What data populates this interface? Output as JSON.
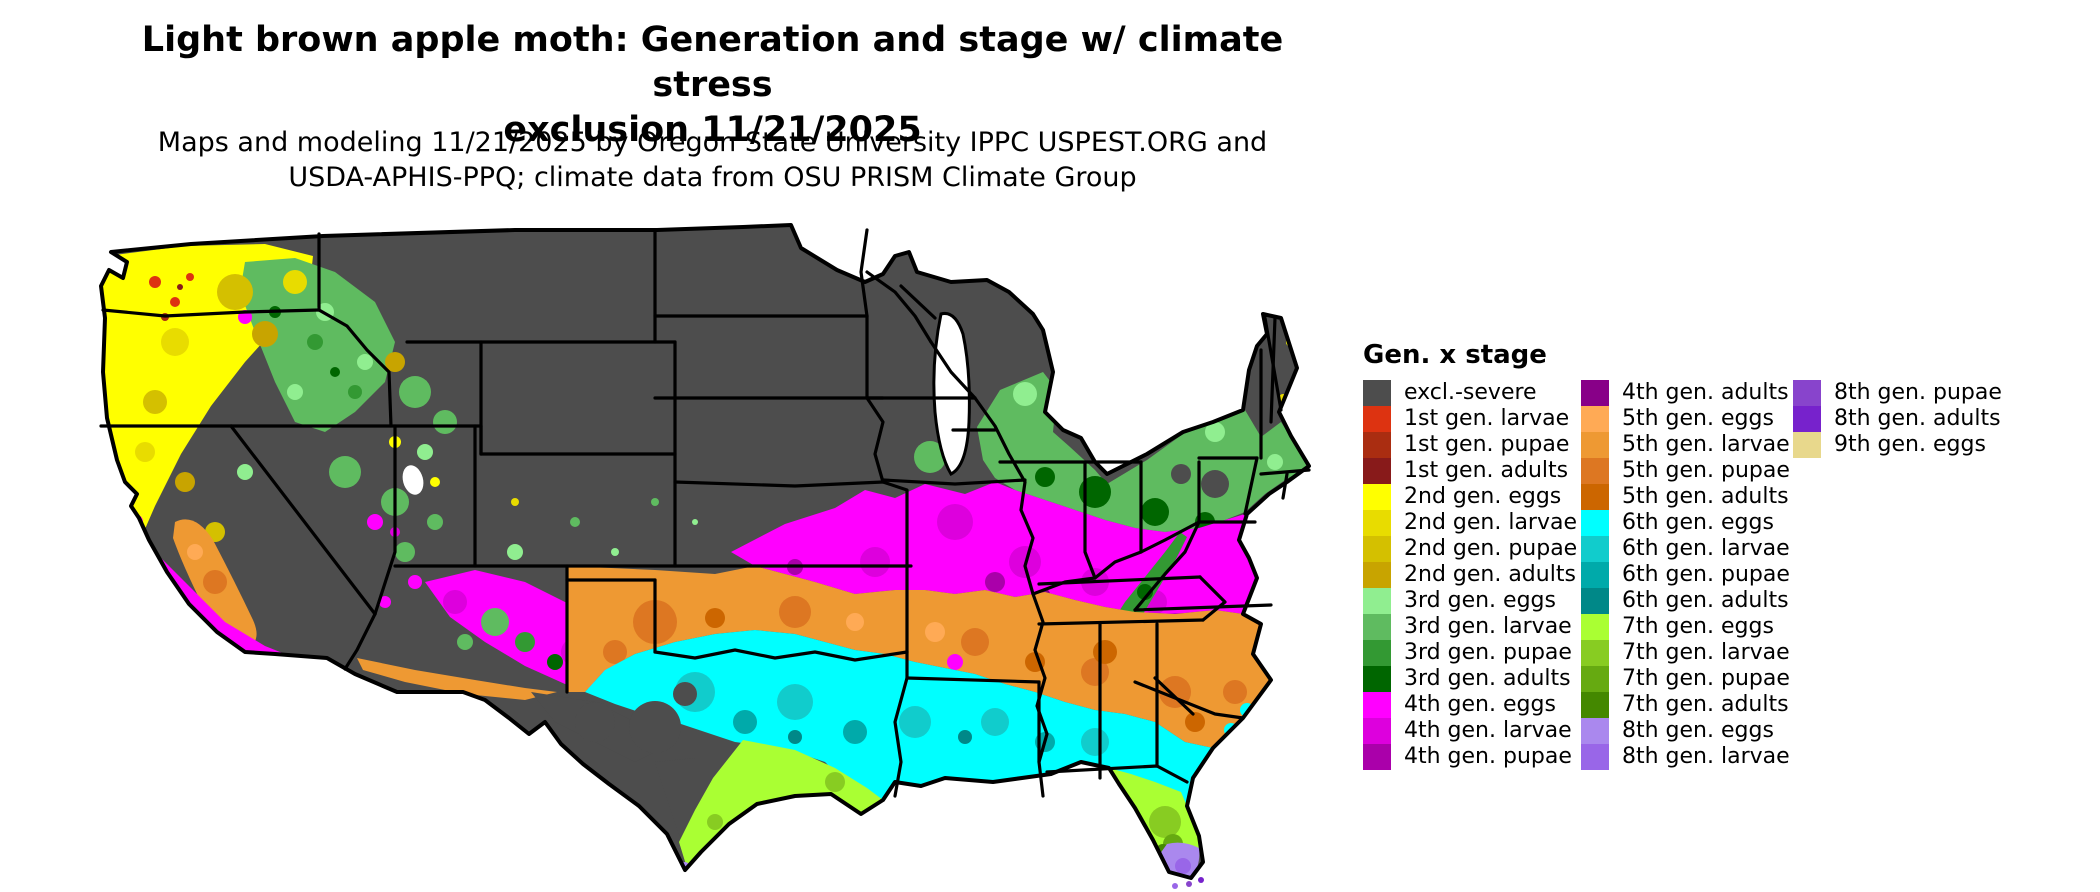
{
  "title": {
    "line1": "Light brown apple moth: Generation and stage w/ climate stress",
    "line2": "exclusion 11/21/2025"
  },
  "subtitle": {
    "line1": "Maps and modeling 11/21/2025 by Oregon State University IPPC USPEST.ORG and",
    "line2": "USDA-APHIS-PPQ; climate data from OSU PRISM Climate Group"
  },
  "legend": {
    "heading": "Gen. x stage",
    "columns": [
      [
        {
          "key": "excl",
          "label": "excl.-severe"
        },
        {
          "key": "g1_larvae",
          "label": "1st gen. larvae"
        },
        {
          "key": "g1_pupae",
          "label": "1st gen. pupae"
        },
        {
          "key": "g1_adults",
          "label": "1st gen. adults"
        },
        {
          "key": "g2_eggs",
          "label": "2nd gen. eggs"
        },
        {
          "key": "g2_larvae",
          "label": "2nd gen. larvae"
        },
        {
          "key": "g2_pupae",
          "label": "2nd gen. pupae"
        },
        {
          "key": "g2_adults",
          "label": "2nd gen. adults"
        },
        {
          "key": "g3_eggs",
          "label": "3rd gen. eggs"
        },
        {
          "key": "g3_larvae",
          "label": "3rd gen. larvae"
        },
        {
          "key": "g3_pupae",
          "label": "3rd gen. pupae"
        },
        {
          "key": "g3_adults",
          "label": "3rd gen. adults"
        },
        {
          "key": "g4_eggs",
          "label": "4th gen. eggs"
        },
        {
          "key": "g4_larvae",
          "label": "4th gen. larvae"
        },
        {
          "key": "g4_pupae",
          "label": "4th gen. pupae"
        }
      ],
      [
        {
          "key": "g4_adults",
          "label": "4th gen. adults"
        },
        {
          "key": "g5_eggs",
          "label": "5th gen. eggs"
        },
        {
          "key": "g5_larvae",
          "label": "5th gen. larvae"
        },
        {
          "key": "g5_pupae",
          "label": "5th gen. pupae"
        },
        {
          "key": "g5_adults",
          "label": "5th gen. adults"
        },
        {
          "key": "g6_eggs",
          "label": "6th gen. eggs"
        },
        {
          "key": "g6_larvae",
          "label": "6th gen. larvae"
        },
        {
          "key": "g6_pupae",
          "label": "6th gen. pupae"
        },
        {
          "key": "g6_adults",
          "label": "6th gen. adults"
        },
        {
          "key": "g7_eggs",
          "label": "7th gen. eggs"
        },
        {
          "key": "g7_larvae",
          "label": "7th gen. larvae"
        },
        {
          "key": "g7_pupae",
          "label": "7th gen. pupae"
        },
        {
          "key": "g7_adults",
          "label": "7th gen. adults"
        },
        {
          "key": "g8_eggs",
          "label": "8th gen. eggs"
        },
        {
          "key": "g8_larvae",
          "label": "8th gen. larvae"
        }
      ],
      [
        {
          "key": "g8_pupae",
          "label": "8th gen. pupae"
        },
        {
          "key": "g8_adults",
          "label": "8th gen. adults"
        },
        {
          "key": "g9_eggs",
          "label": "9th gen. eggs"
        }
      ]
    ]
  },
  "palette": {
    "excl": "#4d4d4d",
    "g1_larvae": "#dd3311",
    "g1_pupae": "#aa2d11",
    "g1_adults": "#881a1a",
    "g2_eggs": "#ffff00",
    "g2_larvae": "#e8dc00",
    "g2_pupae": "#d4c000",
    "g2_adults": "#c8a400",
    "g3_eggs": "#90ee90",
    "g3_larvae": "#5fbb60",
    "g3_pupae": "#339933",
    "g3_adults": "#006600",
    "g4_eggs": "#ff00ff",
    "g4_larvae": "#dd00dd",
    "g4_pupae": "#aa00aa",
    "g4_adults": "#880088",
    "g5_eggs": "#ffaa55",
    "g5_larvae": "#ee9933",
    "g5_pupae": "#dd7722",
    "g5_adults": "#cc6600",
    "g6_eggs": "#00ffff",
    "g6_larvae": "#11cccc",
    "g6_pupae": "#00aaaa",
    "g6_adults": "#008888",
    "g7_eggs": "#aaff33",
    "g7_larvae": "#88cc22",
    "g7_pupae": "#66aa11",
    "g7_adults": "#448800",
    "g8_eggs": "#aa88ee",
    "g8_larvae": "#9966e8",
    "g8_pupae": "#8844cc",
    "g8_adults": "#7722cc",
    "g9_eggs": "#e8d88c"
  },
  "map": {
    "region": "Contiguous United States",
    "bands_north_to_south": [
      {
        "area": "Northern Rockies, Plains, Upper Midwest, N. New England, high deserts, Sierra, S./W. Texas interior",
        "stage": "excl.-severe"
      },
      {
        "area": "Pacific Northwest coast and valleys (WA, W. OR, N. CA)",
        "stage": "2nd gen. eggs-adults with 3rd gen. mottling, small 1st gen. pockets near Puget Sound"
      },
      {
        "area": "Lower Michigan, N. Ohio, Pennsylvania, upstate NY, S. New England, Appalachian ridge",
        "stage": "3rd gen. eggs-adults"
      },
      {
        "area": "E. Kansas, Missouri, Illinois, Indiana, S. Ohio, Kentucky, WV, Virginia, Mid-Atlantic; AZ/NM highlands; S. California coast",
        "stage": "4th gen. eggs-pupae"
      },
      {
        "area": "Texas panhandle, Oklahoma, Arkansas, Tennessee, N. MS/AL/GA, Carolinas; California Central Valley",
        "stage": "5th gen. eggs-adults"
      },
      {
        "area": "Central Texas, Louisiana, S. MS/AL/GA, N. Florida, SE coastal fringe",
        "stage": "6th gen. eggs-adults"
      },
      {
        "area": "Texas Gulf coast strip, S. Louisiana, central Florida peninsula",
        "stage": "7th gen. eggs-adults"
      },
      {
        "area": "South Florida tip, far S. Texas tip, Florida Keys",
        "stage": "8th gen. eggs-adults"
      }
    ]
  }
}
